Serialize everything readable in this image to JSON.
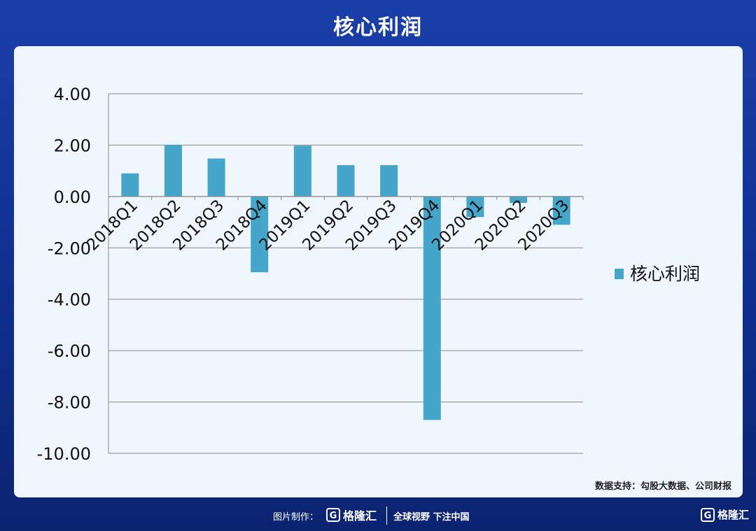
{
  "header": {
    "title": "核心利润"
  },
  "chart_data": {
    "type": "bar",
    "categories": [
      "2018Q1",
      "2018Q2",
      "2018Q3",
      "2018Q4",
      "2019Q1",
      "2019Q2",
      "2019Q3",
      "2019Q4",
      "2020Q1",
      "2020Q2",
      "2020Q3"
    ],
    "series": [
      {
        "name": "核心利润",
        "values": [
          0.9,
          2.0,
          1.48,
          -2.95,
          1.98,
          1.22,
          1.22,
          -8.7,
          -0.8,
          -0.25,
          -1.1
        ]
      }
    ],
    "yticks": [
      "4.00",
      "2.00",
      "0.00",
      "-2.00",
      "-4.00",
      "-6.00",
      "-8.00",
      "-10.00"
    ],
    "ylim": [
      -10,
      4
    ],
    "grid": true,
    "legend_position": "right",
    "bar_color": "#45a6c9"
  },
  "watermark": {
    "text": "格隆汇 | 勾股大数据"
  },
  "source_note": "数据支持：勾股大数据、公司财报",
  "footer": {
    "made_by": "图片制作：",
    "logo_text": "格隆汇",
    "logo_mark": "G",
    "slogan": "全球视野 下注中国",
    "corner_logo_text": "格隆汇"
  }
}
